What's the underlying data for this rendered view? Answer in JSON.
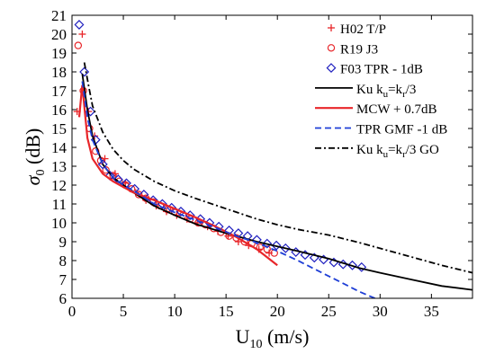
{
  "chart_data": {
    "type": "scatter",
    "title": "",
    "xlabel": "U",
    "xlabel_sub": "10",
    "xlabel_unit": " (m/s)",
    "ylabel": "σ",
    "ylabel_sub": "0",
    "ylabel_unit": " (dB)",
    "xlim": [
      0,
      39
    ],
    "ylim": [
      6,
      21
    ],
    "xticks": [
      0,
      5,
      10,
      15,
      20,
      25,
      30,
      35
    ],
    "yticks": [
      6,
      7,
      8,
      9,
      10,
      11,
      12,
      13,
      14,
      15,
      16,
      17,
      18,
      19,
      20,
      21
    ],
    "grid": false,
    "legend_position": "top-right",
    "legend": [
      {
        "series": "h02",
        "parts": [
          {
            "t": "H02 T/P"
          }
        ]
      },
      {
        "series": "r19",
        "parts": [
          {
            "t": "R19 J3"
          }
        ]
      },
      {
        "series": "f03",
        "parts": [
          {
            "t": "F03 TPR - 1dB"
          }
        ]
      },
      {
        "series": "ku",
        "parts": [
          {
            "t": "Ku k"
          },
          {
            "t": "u",
            "sub": true
          },
          {
            "t": "=k"
          },
          {
            "t": "r",
            "sub": true
          },
          {
            "t": "/3"
          }
        ]
      },
      {
        "series": "mcw",
        "parts": [
          {
            "t": "MCW + 0.7dB"
          }
        ]
      },
      {
        "series": "tpr",
        "parts": [
          {
            "t": "TPR GMF -1 dB"
          }
        ]
      },
      {
        "series": "kugo",
        "parts": [
          {
            "t": "Ku k"
          },
          {
            "t": "u",
            "sub": true
          },
          {
            "t": "=k"
          },
          {
            "t": "r",
            "sub": true
          },
          {
            "t": "/3 GO"
          }
        ]
      }
    ],
    "series": [
      {
        "id": "h02",
        "name": "H02 T/P",
        "kind": "marker",
        "marker": "plus",
        "color": "#e8262a",
        "x": [
          0.5,
          1.0,
          1.6,
          2.2,
          3.2,
          4.2,
          5.2,
          6.2,
          7.2,
          8.2,
          9.2,
          10.2,
          11.2,
          12.2,
          13.2,
          14.2,
          15.2,
          16.2,
          17.2,
          18.2,
          19.2
        ],
        "y": [
          15.9,
          20.0,
          15.9,
          14.6,
          13.4,
          12.6,
          12.1,
          11.6,
          11.2,
          10.9,
          10.6,
          10.4,
          10.2,
          10.0,
          9.8,
          9.55,
          9.3,
          9.0,
          8.8,
          8.6,
          8.4
        ]
      },
      {
        "id": "r19",
        "name": "R19 J3",
        "kind": "marker",
        "marker": "circle",
        "color": "#e8262a",
        "x": [
          0.6,
          1.1,
          1.7,
          2.3,
          2.8,
          3.3,
          4.0,
          4.6,
          5.2,
          5.8,
          6.5,
          7.2,
          7.9,
          8.6,
          9.3,
          10.0,
          10.8,
          11.5,
          12.3,
          13.0,
          13.8,
          14.5,
          15.3,
          16.0,
          16.8,
          17.5,
          18.3,
          19.0,
          19.7
        ],
        "y": [
          19.4,
          17.0,
          15.0,
          13.8,
          13.3,
          12.8,
          12.5,
          12.2,
          12.0,
          11.8,
          11.5,
          11.3,
          11.1,
          10.9,
          10.7,
          10.6,
          10.4,
          10.2,
          10.0,
          9.9,
          9.7,
          9.5,
          9.3,
          9.2,
          9.0,
          8.9,
          8.7,
          8.6,
          8.4
        ]
      },
      {
        "id": "f03",
        "name": "F03 TPR - 1dB",
        "kind": "marker",
        "marker": "diamond",
        "color": "#1f1fbf",
        "x": [
          0.7,
          1.2,
          1.8,
          2.3,
          3.0,
          3.7,
          4.5,
          5.3,
          6.1,
          7.0,
          7.9,
          8.8,
          9.7,
          10.6,
          11.5,
          12.5,
          13.4,
          14.3,
          15.3,
          16.2,
          17.1,
          18.0,
          19.0,
          19.9,
          20.8,
          21.8,
          22.7,
          23.6,
          24.5,
          25.5,
          26.4,
          27.3,
          28.2
        ],
        "y": [
          20.5,
          18.0,
          15.9,
          14.4,
          13.1,
          12.5,
          12.3,
          12.1,
          11.8,
          11.5,
          11.2,
          11.0,
          10.8,
          10.6,
          10.4,
          10.2,
          10.0,
          9.8,
          9.6,
          9.45,
          9.3,
          9.1,
          8.9,
          8.8,
          8.65,
          8.45,
          8.3,
          8.15,
          8.05,
          7.9,
          7.8,
          7.75,
          7.65
        ]
      },
      {
        "id": "ku",
        "name": "Ku ku=kr/3",
        "kind": "line",
        "color": "#000000",
        "dash": "",
        "x": [
          1.0,
          1.5,
          2.0,
          3.0,
          4.0,
          5.0,
          6.0,
          8.0,
          10.0,
          12.0,
          15.0,
          18.0,
          20.0,
          22.0,
          25.0,
          28.0,
          30.0,
          33.0,
          36.0,
          39.0
        ],
        "y": [
          17.9,
          16.0,
          14.6,
          13.1,
          12.4,
          12.0,
          11.6,
          10.9,
          10.4,
          9.95,
          9.45,
          9.0,
          8.75,
          8.5,
          8.1,
          7.6,
          7.35,
          7.0,
          6.65,
          6.45
        ]
      },
      {
        "id": "mcw",
        "name": "MCW + 0.7dB",
        "kind": "line",
        "color": "#e8262a",
        "dash": "",
        "x": [
          0.7,
          1.0,
          1.5,
          2.0,
          3.0,
          4.0,
          5.0,
          6.0,
          8.0,
          10.0,
          12.0,
          14.0,
          16.0,
          18.0,
          20.0
        ],
        "y": [
          15.6,
          17.3,
          14.5,
          13.4,
          12.6,
          12.2,
          11.9,
          11.6,
          11.2,
          10.75,
          10.3,
          9.8,
          9.25,
          8.6,
          7.75
        ]
      },
      {
        "id": "tpr",
        "name": "TPR GMF -1 dB",
        "kind": "line",
        "color": "#1f3fd6",
        "dash": "7,4",
        "x": [
          1.0,
          1.5,
          2.0,
          3.0,
          4.0,
          5.0,
          6.0,
          8.0,
          10.0,
          12.0,
          14.0,
          16.0,
          18.0,
          20.0,
          22.0,
          24.0,
          26.0,
          28.0,
          29.5
        ],
        "y": [
          17.5,
          15.6,
          14.4,
          13.1,
          12.4,
          12.0,
          11.7,
          11.0,
          10.55,
          10.15,
          9.75,
          9.3,
          8.95,
          8.5,
          8.0,
          7.45,
          6.9,
          6.35,
          6.0
        ]
      },
      {
        "id": "kugo",
        "name": "Ku ku=kr/3 GO",
        "kind": "line",
        "color": "#000000",
        "dash": "7,3,2,3",
        "x": [
          1.2,
          1.6,
          2.0,
          3.0,
          4.0,
          5.0,
          6.0,
          8.0,
          10.0,
          12.0,
          15.0,
          18.0,
          20.0,
          22.0,
          25.0,
          28.0,
          30.0,
          33.0,
          36.0,
          39.0
        ],
        "y": [
          18.5,
          17.3,
          16.2,
          14.8,
          13.9,
          13.3,
          12.85,
          12.2,
          11.7,
          11.3,
          10.75,
          10.2,
          9.9,
          9.65,
          9.35,
          8.95,
          8.65,
          8.2,
          7.75,
          7.35
        ]
      }
    ]
  }
}
